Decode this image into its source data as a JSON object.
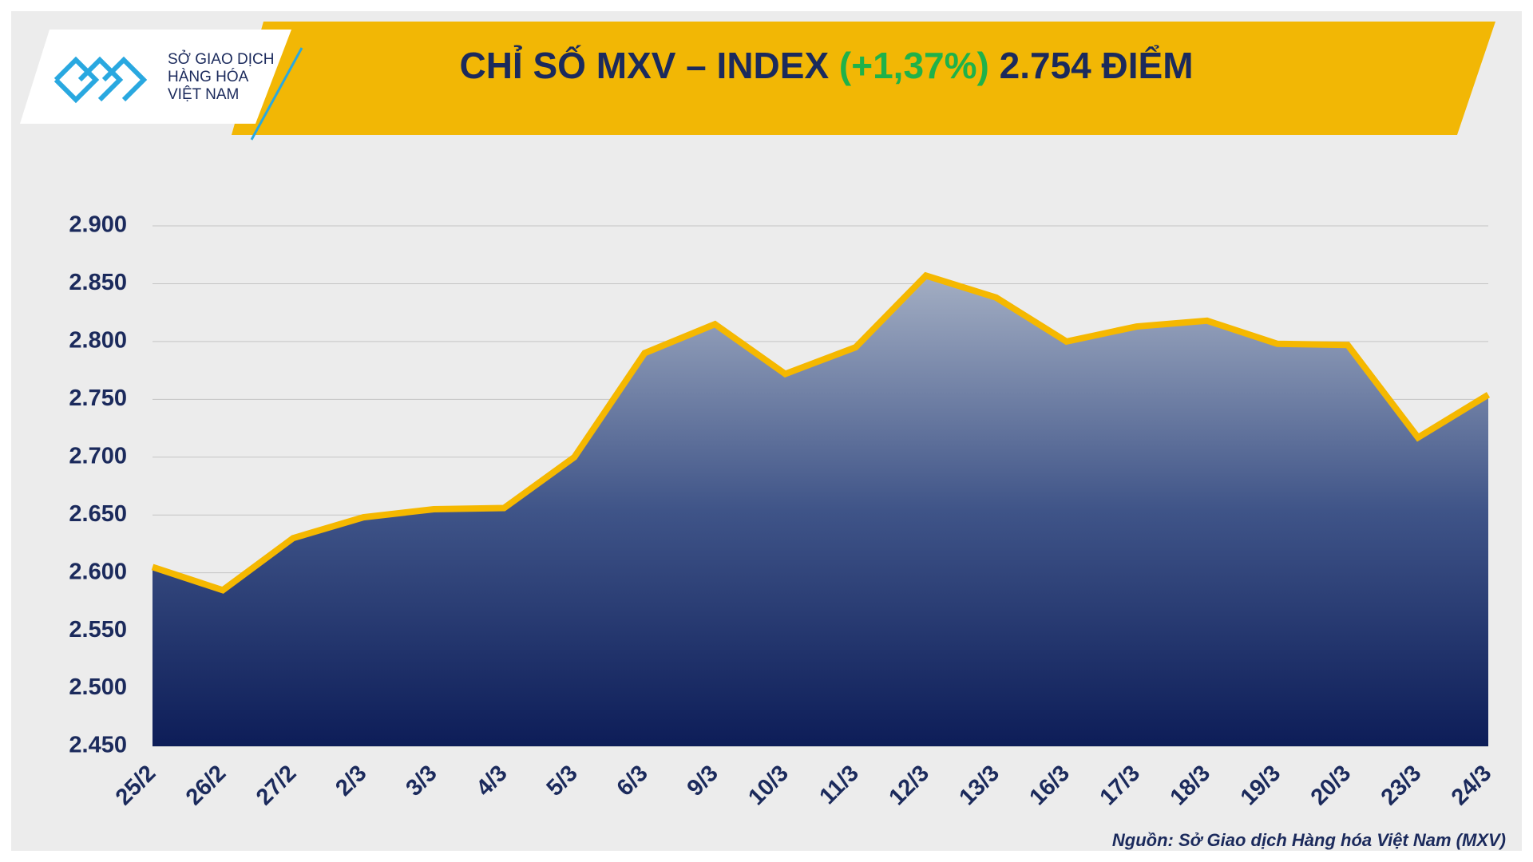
{
  "header": {
    "logo_lines": [
      "SỞ GIAO DỊCH",
      "HÀNG HÓA",
      "VIỆT NAM"
    ],
    "title": "CHỈ SỐ MXV – INDEX",
    "change": "(+1,37%)",
    "value": "2.754 ĐIỂM"
  },
  "chart_data": {
    "type": "area",
    "categories": [
      "25/2",
      "26/2",
      "27/2",
      "2/3",
      "3/3",
      "4/3",
      "5/3",
      "6/3",
      "9/3",
      "10/3",
      "11/3",
      "12/3",
      "13/3",
      "16/3",
      "17/3",
      "18/3",
      "19/3",
      "20/3",
      "23/3",
      "24/3"
    ],
    "series": [
      {
        "color": "#f5b800",
        "values": [
          2605,
          2585,
          2630,
          2648,
          2655,
          2656,
          2700,
          2790,
          2815,
          2772,
          2795,
          2857,
          2838,
          2800,
          2813,
          2818,
          2798,
          2797,
          2717,
          2754
        ]
      }
    ],
    "ylim": [
      2450,
      2900
    ],
    "yticks": [
      {
        "value": 2450,
        "label": "2.450"
      },
      {
        "value": 2500,
        "label": "2.500"
      },
      {
        "value": 2550,
        "label": "2.550"
      },
      {
        "value": 2600,
        "label": "2.600"
      },
      {
        "value": 2650,
        "label": "2.650"
      },
      {
        "value": 2700,
        "label": "2.700"
      },
      {
        "value": 2750,
        "label": "2.750"
      },
      {
        "value": 2800,
        "label": "2.800"
      },
      {
        "value": 2850,
        "label": "2.850"
      },
      {
        "value": 2900,
        "label": "2.900"
      }
    ],
    "grid": true,
    "source": "Nguồn: Sở Giao dịch Hàng hóa Việt Nam (MXV)"
  }
}
